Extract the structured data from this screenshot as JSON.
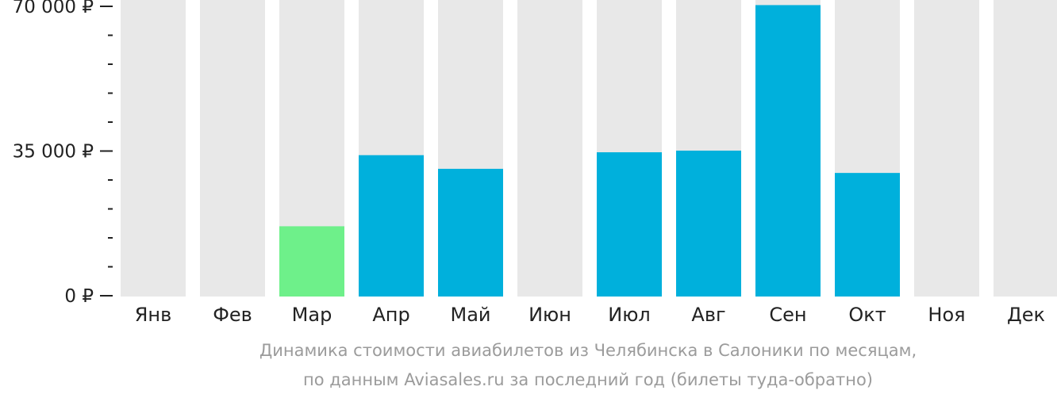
{
  "chart_data": {
    "type": "bar",
    "categories": [
      "Янв",
      "Фев",
      "Мар",
      "Апр",
      "Май",
      "Июн",
      "Июл",
      "Авг",
      "Сен",
      "Окт",
      "Ноя",
      "Дек"
    ],
    "values": [
      null,
      null,
      16800,
      34000,
      30700,
      null,
      34700,
      35100,
      70300,
      29700,
      null,
      null
    ],
    "highlighted_category": "Мар",
    "ylim": [
      0,
      70000
    ],
    "yticks": [
      {
        "value": 70000,
        "label": "70 000 ₽"
      },
      {
        "value": 35000,
        "label": "35 000 ₽"
      },
      {
        "value": 0,
        "label": "0 ₽"
      }
    ],
    "minor_yticks": [
      7000,
      14000,
      21000,
      28000,
      42000,
      49000,
      56000,
      63000
    ],
    "colors": {
      "bar": "#00b0dc",
      "highlight": "#6ef08a",
      "background_column": "#e8e8e8",
      "axis": "#222222"
    },
    "caption": [
      "Динамика стоимости авиабилетов из Челябинска в Салоники по месяцам,",
      "по данным Aviasales.ru за последний год (билеты туда-обратно)"
    ]
  }
}
